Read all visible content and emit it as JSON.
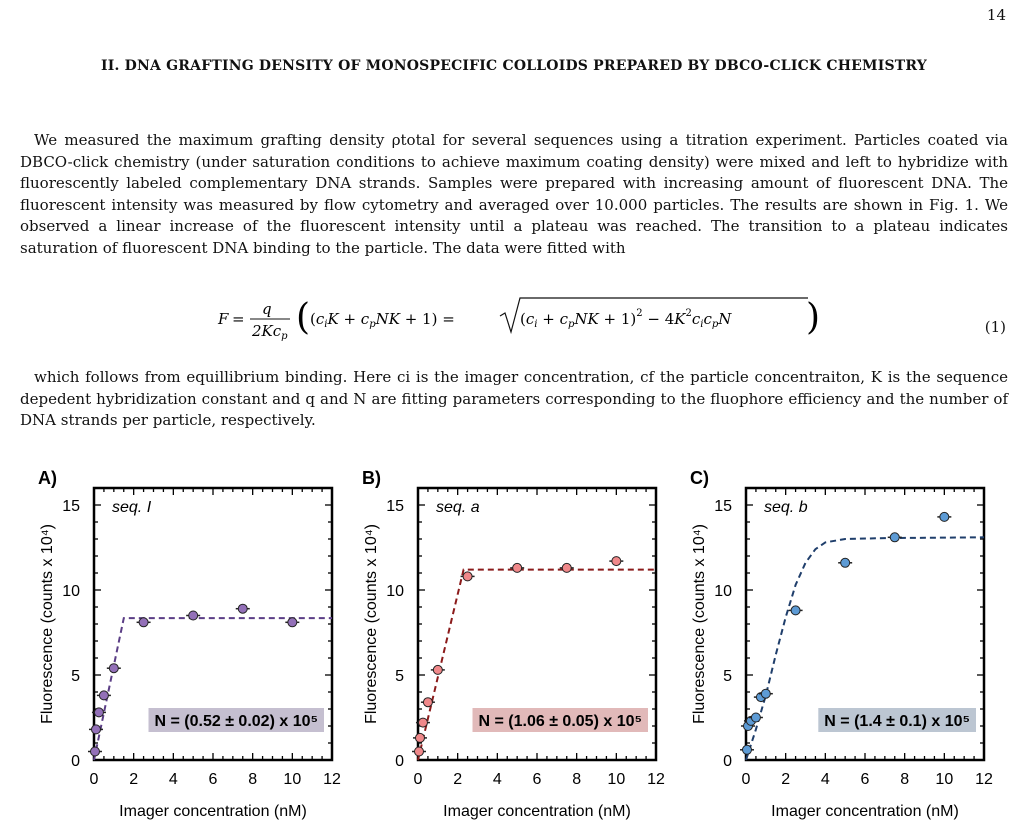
{
  "page_number": "14",
  "section_heading": "II.   DNA GRAFTING DENSITY OF MONOSPECIFIC COLLOIDS PREPARED BY DBCO-CLICK CHEMISTRY",
  "paragraph1": "We measured the maximum grafting density ρtotal for several sequences using a titration experiment. Particles coated via DBCO-click chemistry (under saturation conditions to achieve maximum coating density) were mixed and left to hybridize with fluorescently labeled complementary DNA strands. Samples were prepared with increasing amount of fluorescent DNA. The fluorescent intensity was measured by flow cytometry and averaged over 10.000 particles. The results are shown in Fig. 1. We observed a linear increase of the fluorescent intensity until a plateau was reached. The transition to a plateau indicates saturation of fluorescent DNA binding to the particle. The data were fitted with",
  "equation": "F = q/(2Kcp) ((ciK + cpNK + 1) = √((ci + cpNK + 1)² − 4K²cicpN))",
  "equation_number": "(1)",
  "paragraph2": "which follows from equillibrium binding. Here ci is the imager concentration, cf the particle concentraiton, K is the sequence depedent hybridization constant and q and N are fitting parameters corresponding to the fluophore efficiency and the number of DNA strands per particle, respectively.",
  "chart_data": [
    {
      "type": "scatter",
      "panel_label": "A)",
      "seq_label": "seq. I",
      "xlabel": "Imager concentration (nM)",
      "ylabel": "Fluorescence (counts x 10⁴)",
      "xlim": [
        0,
        12
      ],
      "ylim": [
        0,
        16
      ],
      "xticks": [
        0,
        2,
        4,
        6,
        8,
        10,
        12
      ],
      "yticks": [
        0,
        5,
        10,
        15
      ],
      "color": "#9370b8",
      "fit_color": "#5a3d85",
      "x": [
        0.05,
        0.1,
        0.25,
        0.5,
        1.0,
        2.5,
        5.0,
        7.5,
        10.0
      ],
      "y": [
        0.5,
        1.8,
        2.8,
        3.8,
        5.4,
        8.1,
        8.5,
        8.9,
        8.1
      ],
      "fit": [
        [
          0,
          0
        ],
        [
          1.5,
          8.35
        ],
        [
          12,
          8.35
        ]
      ],
      "annotation": "N = (0.52 ± 0.02) x 10⁵",
      "annotation_bg": "#c5bfd0"
    },
    {
      "type": "scatter",
      "panel_label": "B)",
      "seq_label": "seq. a",
      "xlabel": "Imager concentration (nM)",
      "ylabel": "Fluorescence (counts x 10⁴)",
      "xlim": [
        0,
        12
      ],
      "ylim": [
        0,
        16
      ],
      "xticks": [
        0,
        2,
        4,
        6,
        8,
        10,
        12
      ],
      "yticks": [
        0,
        5,
        10,
        15
      ],
      "color": "#f0888a",
      "fit_color": "#8b1a1a",
      "x": [
        0.05,
        0.1,
        0.25,
        0.5,
        1.0,
        2.5,
        5.0,
        7.5,
        10.0
      ],
      "y": [
        0.5,
        1.3,
        2.2,
        3.4,
        5.3,
        10.8,
        11.3,
        11.3,
        11.7
      ],
      "fit": [
        [
          0,
          0
        ],
        [
          2.3,
          11.2
        ],
        [
          12,
          11.2
        ]
      ],
      "annotation": "N = (1.06 ± 0.05) x 10⁵",
      "annotation_bg": "#e1b9b9"
    },
    {
      "type": "scatter",
      "panel_label": "C)",
      "seq_label": "seq. b",
      "xlabel": "Imager concentration (nM)",
      "ylabel": "Fluorescence (counts x 10⁴)",
      "xlim": [
        0,
        12
      ],
      "ylim": [
        0,
        16
      ],
      "xticks": [
        0,
        2,
        4,
        6,
        8,
        10,
        12
      ],
      "yticks": [
        0,
        5,
        10,
        15
      ],
      "color": "#5d9bd5",
      "fit_color": "#1f3e6b",
      "x": [
        0.05,
        0.1,
        0.25,
        0.5,
        0.75,
        1.0,
        2.5,
        5.0,
        7.5,
        10.0
      ],
      "y": [
        0.6,
        2.0,
        2.3,
        2.5,
        3.7,
        3.9,
        8.8,
        11.6,
        13.1,
        14.3
      ],
      "fit": [
        [
          0,
          0
        ],
        [
          0.5,
          1.8
        ],
        [
          1.0,
          3.8
        ],
        [
          1.5,
          6.2
        ],
        [
          2.0,
          8.4
        ],
        [
          2.5,
          10.3
        ],
        [
          3.0,
          11.6
        ],
        [
          3.5,
          12.4
        ],
        [
          4.0,
          12.8
        ],
        [
          5.0,
          13.0
        ],
        [
          7.0,
          13.05
        ],
        [
          12.0,
          13.1
        ]
      ],
      "annotation": "N = (1.4 ± 0.1) x 10⁵",
      "annotation_bg": "#bcc6d2"
    }
  ]
}
